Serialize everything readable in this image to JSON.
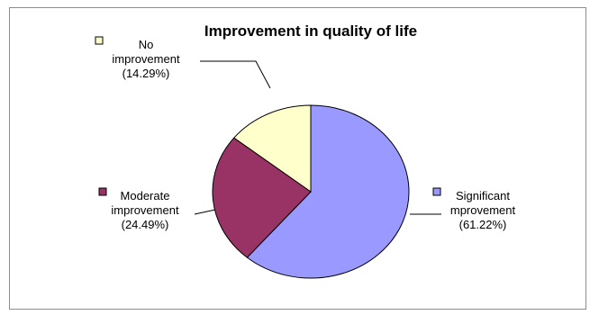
{
  "chart_data": {
    "type": "pie",
    "title": "Improvement in quality of life",
    "slices": [
      {
        "label_lines": [
          "Significant",
          "mprovement"
        ],
        "pct_label": "(61.22%)",
        "value": 61.22,
        "color": "#9999ff"
      },
      {
        "label_lines": [
          "Moderate",
          "improvement"
        ],
        "pct_label": "(24.49%)",
        "value": 24.49,
        "color": "#993366"
      },
      {
        "label_lines": [
          "No",
          "improvement"
        ],
        "pct_label": "(14.29%)",
        "value": 14.29,
        "color": "#ffffcc"
      }
    ],
    "start": "12 o'clock",
    "direction": "clockwise",
    "legend": "none"
  }
}
